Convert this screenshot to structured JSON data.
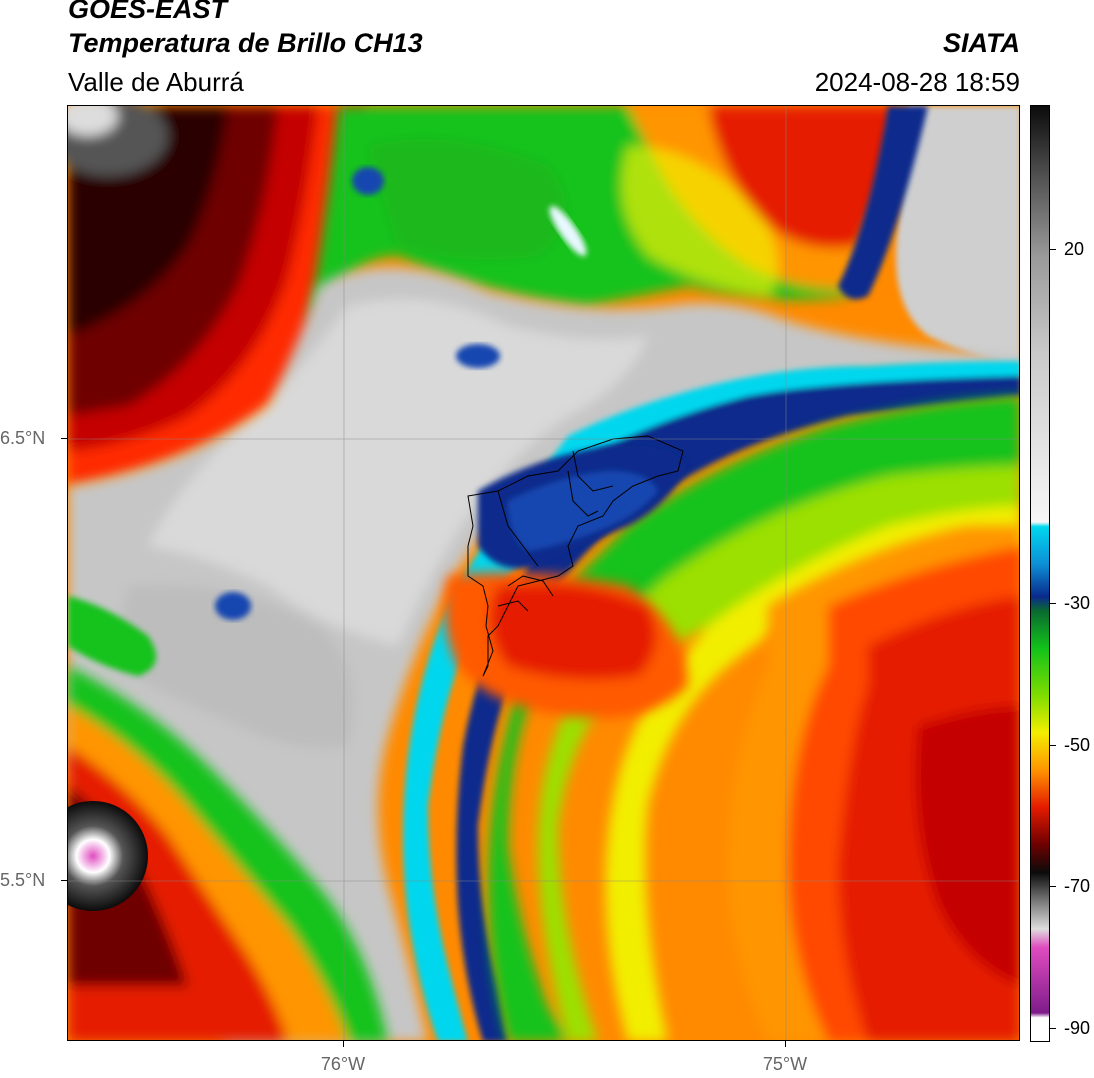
{
  "header": {
    "satellite": "GOES-EAST",
    "product": "Temperatura de Brillo CH13",
    "brand": "SIATA",
    "region": "Valle de Aburrá",
    "timestamp": "2024-08-28 18:59"
  },
  "map": {
    "lat_labels": [
      "6.5°N",
      "5.5°N"
    ],
    "lon_labels": [
      "76°W",
      "75°W"
    ]
  },
  "colorbar": {
    "ticks": [
      "20",
      "-30",
      "-50",
      "-70",
      "-90"
    ],
    "colors": {
      "warm_white": "#ececec",
      "cyan": "#00d7ee",
      "navy": "#0a2a8c",
      "green": "#12c21a",
      "yellow": "#f2ee00",
      "orange": "#ff9500",
      "red": "#e51b00",
      "dark_red": "#6e0000",
      "black": "#0b0b0b",
      "magenta": "#e04cc0",
      "purple": "#7e1c8a"
    }
  }
}
